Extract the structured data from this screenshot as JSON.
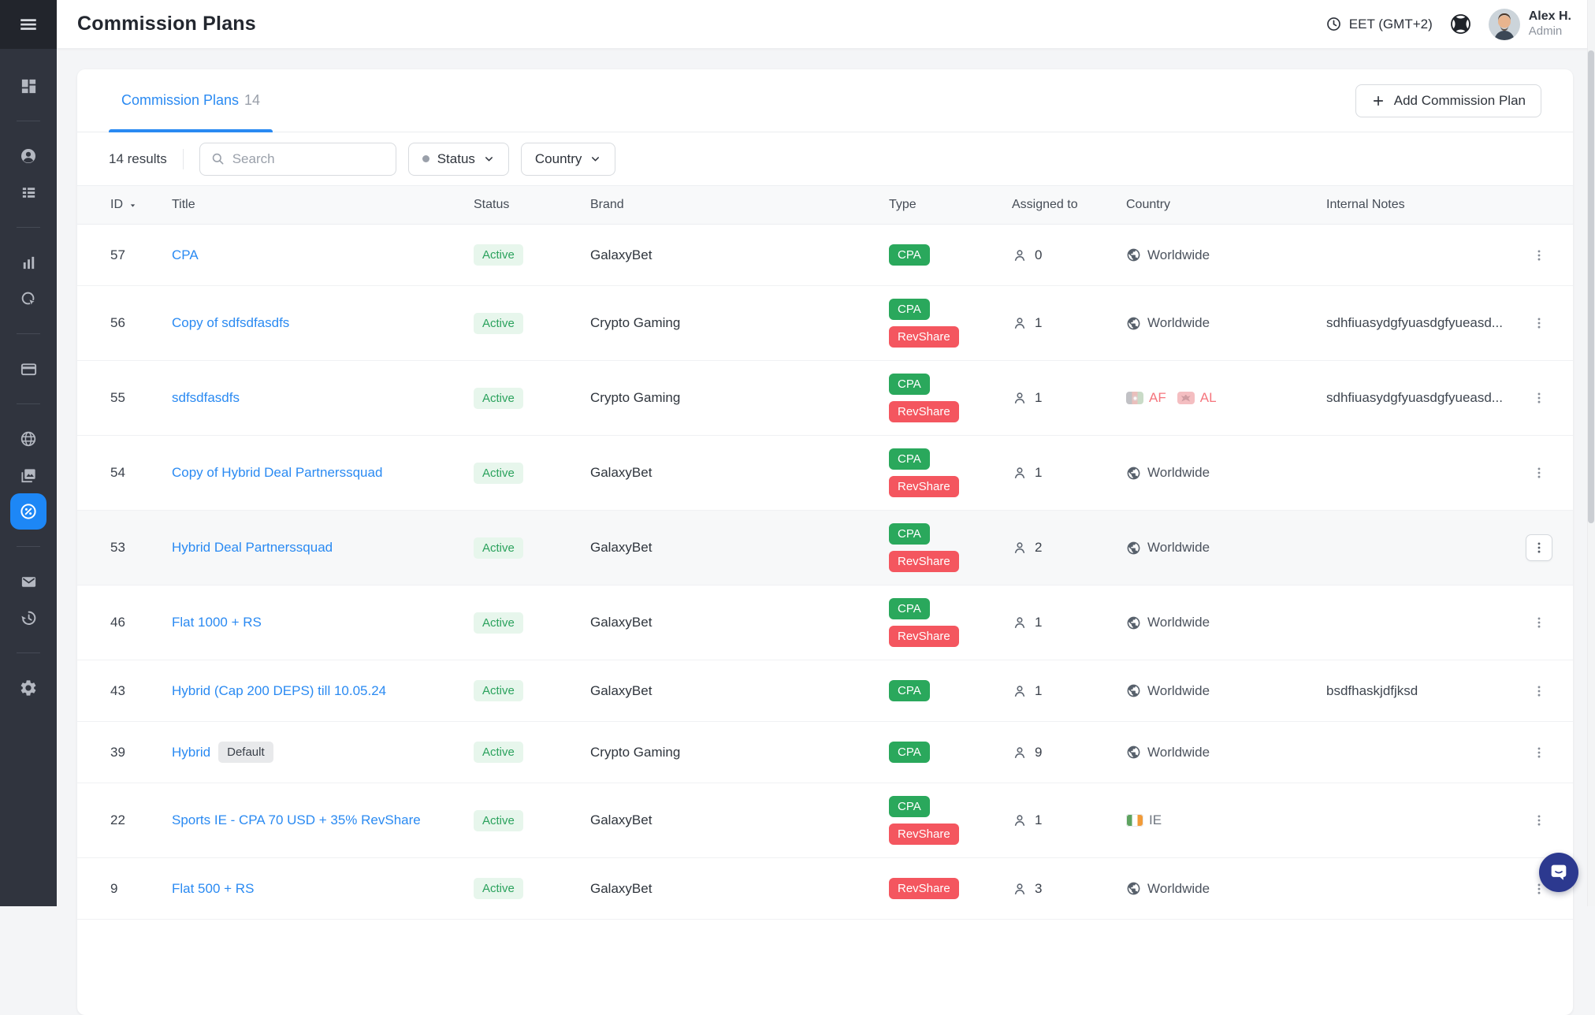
{
  "header": {
    "title": "Commission Plans",
    "timezone": "EET (GMT+2)",
    "user": {
      "name": "Alex H.",
      "role": "Admin"
    }
  },
  "sidebar": {
    "items": [
      {
        "icon": "dashboard"
      },
      {
        "divider": true
      },
      {
        "icon": "account"
      },
      {
        "icon": "list"
      },
      {
        "divider": true
      },
      {
        "icon": "bar-chart"
      },
      {
        "icon": "target"
      },
      {
        "divider": true
      },
      {
        "icon": "credit-card"
      },
      {
        "divider": true
      },
      {
        "icon": "globe"
      },
      {
        "icon": "media"
      },
      {
        "icon": "percent",
        "active": true
      },
      {
        "divider": true
      },
      {
        "icon": "mail"
      },
      {
        "icon": "history"
      },
      {
        "divider": true
      },
      {
        "icon": "settings"
      }
    ]
  },
  "tabs": {
    "label": "Commission Plans",
    "count": "14"
  },
  "toolbar": {
    "add_label": "Add Commission Plan",
    "results": "14 results",
    "search_placeholder": "Search",
    "status_label": "Status",
    "country_label": "Country"
  },
  "table": {
    "columns": [
      "ID",
      "Title",
      "Status",
      "Brand",
      "Type",
      "Assigned to",
      "Country",
      "Internal Notes"
    ],
    "rows": [
      {
        "id": "57",
        "title": "CPA",
        "status": "Active",
        "brand": "GalaxyBet",
        "types": [
          "CPA"
        ],
        "assigned": "0",
        "country": {
          "kind": "worldwide",
          "label": "Worldwide"
        },
        "notes": ""
      },
      {
        "id": "56",
        "title": "Copy of sdfsdfasdfs",
        "status": "Active",
        "brand": "Crypto Gaming",
        "types": [
          "CPA",
          "RevShare"
        ],
        "assigned": "1",
        "country": {
          "kind": "worldwide",
          "label": "Worldwide"
        },
        "notes": "sdhfiuasydgfyuasdgfyueasd..."
      },
      {
        "id": "55",
        "title": "sdfsdfasdfs",
        "status": "Active",
        "brand": "Crypto Gaming",
        "types": [
          "CPA",
          "RevShare"
        ],
        "assigned": "1",
        "country": {
          "kind": "flags",
          "flags": [
            {
              "code": "AF",
              "excluded": true
            },
            {
              "code": "AL",
              "excluded": true
            }
          ]
        },
        "notes": "sdhfiuasydgfyuasdgfyueasd..."
      },
      {
        "id": "54",
        "title": "Copy of Hybrid Deal Partnerssquad",
        "status": "Active",
        "brand": "GalaxyBet",
        "types": [
          "CPA",
          "RevShare"
        ],
        "assigned": "1",
        "country": {
          "kind": "worldwide",
          "label": "Worldwide"
        },
        "notes": ""
      },
      {
        "id": "53",
        "title": "Hybrid Deal Partnerssquad",
        "status": "Active",
        "brand": "GalaxyBet",
        "types": [
          "CPA",
          "RevShare"
        ],
        "assigned": "2",
        "country": {
          "kind": "worldwide",
          "label": "Worldwide"
        },
        "notes": "",
        "highlighted": true
      },
      {
        "id": "46",
        "title": "Flat 1000 + RS",
        "status": "Active",
        "brand": "GalaxyBet",
        "types": [
          "CPA",
          "RevShare"
        ],
        "assigned": "1",
        "country": {
          "kind": "worldwide",
          "label": "Worldwide"
        },
        "notes": ""
      },
      {
        "id": "43",
        "title": "Hybrid (Cap 200 DEPS) till 10.05.24",
        "status": "Active",
        "brand": "GalaxyBet",
        "types": [
          "CPA"
        ],
        "assigned": "1",
        "country": {
          "kind": "worldwide",
          "label": "Worldwide"
        },
        "notes": "bsdfhaskjdfjksd"
      },
      {
        "id": "39",
        "title": "Hybrid",
        "title_chip": "Default",
        "status": "Active",
        "brand": "Crypto Gaming",
        "types": [
          "CPA"
        ],
        "assigned": "9",
        "country": {
          "kind": "worldwide",
          "label": "Worldwide"
        },
        "notes": ""
      },
      {
        "id": "22",
        "title": "Sports IE - CPA 70 USD + 35% RevShare",
        "status": "Active",
        "brand": "GalaxyBet",
        "types": [
          "CPA",
          "RevShare"
        ],
        "assigned": "1",
        "country": {
          "kind": "flags",
          "flags": [
            {
              "code": "IE",
              "excluded": false
            }
          ]
        },
        "notes": ""
      },
      {
        "id": "9",
        "title": "Flat 500 + RS",
        "status": "Active",
        "brand": "GalaxyBet",
        "types": [
          "RevShare"
        ],
        "assigned": "3",
        "country": {
          "kind": "worldwide",
          "label": "Worldwide"
        },
        "notes": ""
      }
    ]
  },
  "colors": {
    "accent_blue": "#2a8af2",
    "sidebar_bg": "#30343e",
    "sidebar_active": "#1d87f6",
    "badge_green": "#2aa85c",
    "badge_red": "#f4565f",
    "status_chip_bg": "#e7f6ec",
    "status_chip_text": "#2ba25d",
    "excluded_country_text": "#f5757d",
    "chat_fab": "#2c398f"
  }
}
